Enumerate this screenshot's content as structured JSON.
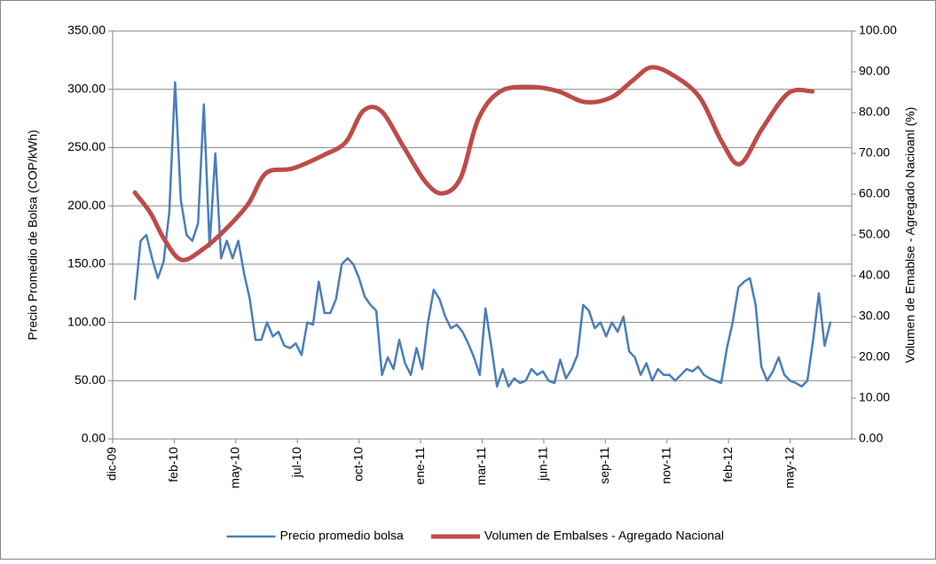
{
  "chart_data": {
    "type": "line",
    "ylabel": "Precio Promedio de Bolsa (COP/kWh)",
    "y2label": "Volumen de Emablse - Agregado Nacioanl (%)",
    "xlim": [
      0,
      900
    ],
    "xticks": [
      {
        "value": 0,
        "label": "dic-09"
      },
      {
        "value": 75,
        "label": "feb-10"
      },
      {
        "value": 150,
        "label": "may-10"
      },
      {
        "value": 225,
        "label": "jul-10"
      },
      {
        "value": 300,
        "label": "oct-10"
      },
      {
        "value": 375,
        "label": "ene-11"
      },
      {
        "value": 450,
        "label": "mar-11"
      },
      {
        "value": 525,
        "label": "jun-11"
      },
      {
        "value": 600,
        "label": "sep-11"
      },
      {
        "value": 675,
        "label": "nov-11"
      },
      {
        "value": 750,
        "label": "feb-12"
      },
      {
        "value": 825,
        "label": "may-12"
      }
    ],
    "ylim": [
      0,
      350
    ],
    "yticks": [
      {
        "value": 0,
        "label": "0.00"
      },
      {
        "value": 50,
        "label": "50.00"
      },
      {
        "value": 100,
        "label": "100.00"
      },
      {
        "value": 150,
        "label": "150.00"
      },
      {
        "value": 200,
        "label": "200.00"
      },
      {
        "value": 250,
        "label": "250.00"
      },
      {
        "value": 300,
        "label": "300.00"
      },
      {
        "value": 350,
        "label": "350.00"
      }
    ],
    "y2lim": [
      0,
      100
    ],
    "y2ticks": [
      {
        "value": 0,
        "label": "0.00"
      },
      {
        "value": 10,
        "label": "10.00"
      },
      {
        "value": 20,
        "label": "20.00"
      },
      {
        "value": 30,
        "label": "30.00"
      },
      {
        "value": 40,
        "label": "40.00"
      },
      {
        "value": 50,
        "label": "50.00"
      },
      {
        "value": 60,
        "label": "60.00"
      },
      {
        "value": 70,
        "label": "70.00"
      },
      {
        "value": 80,
        "label": "80.00"
      },
      {
        "value": 90,
        "label": "90.00"
      },
      {
        "value": 100,
        "label": "100.00"
      }
    ],
    "grid": true,
    "legend": "bottom",
    "series": [
      {
        "name": "Precio promedio bolsa",
        "color": "#4a7ebb",
        "axis": "y",
        "x": [
          27,
          34,
          41,
          48,
          55,
          62,
          69,
          76,
          83,
          90,
          97,
          104,
          111,
          118,
          125,
          132,
          139,
          146,
          153,
          160,
          167,
          174,
          181,
          188,
          195,
          202,
          209,
          216,
          223,
          230,
          237,
          244,
          251,
          258,
          265,
          272,
          279,
          286,
          293,
          300,
          307,
          314,
          321,
          328,
          335,
          342,
          349,
          356,
          363,
          370,
          377,
          384,
          391,
          398,
          405,
          412,
          419,
          426,
          433,
          440,
          447,
          454,
          461,
          468,
          475,
          482,
          489,
          496,
          503,
          510,
          517,
          524,
          531,
          538,
          545,
          552,
          559,
          566,
          573,
          580,
          587,
          594,
          601,
          608,
          615,
          622,
          629,
          636,
          643,
          650,
          657,
          664,
          671,
          678,
          685,
          692,
          699,
          706,
          713,
          720,
          727,
          734,
          741,
          748,
          755,
          762,
          769,
          776,
          783,
          790,
          797,
          804,
          811,
          818,
          825,
          832,
          839,
          846,
          853,
          860,
          867,
          874
        ],
        "values": [
          120,
          170,
          175,
          155,
          138,
          152,
          195,
          306,
          205,
          175,
          170,
          185,
          287,
          165,
          245,
          155,
          170,
          155,
          170,
          142,
          120,
          85,
          85,
          100,
          88,
          92,
          80,
          78,
          82,
          72,
          100,
          98,
          135,
          108,
          108,
          120,
          150,
          155,
          150,
          138,
          122,
          115,
          110,
          55,
          70,
          60,
          85,
          65,
          55,
          78,
          60,
          100,
          128,
          120,
          105,
          95,
          98,
          92,
          82,
          70,
          55,
          112,
          80,
          45,
          60,
          45,
          52,
          48,
          50,
          60,
          55,
          58,
          50,
          48,
          68,
          52,
          60,
          72,
          115,
          110,
          95,
          100,
          88,
          100,
          92,
          105,
          75,
          70,
          55,
          65,
          50,
          60,
          55,
          55,
          50,
          55,
          60,
          58,
          62,
          55,
          52,
          50,
          48,
          78,
          100,
          130,
          135,
          138,
          115,
          62,
          50,
          58,
          70,
          55,
          50,
          48,
          45,
          50,
          85,
          125,
          80,
          100
        ]
      },
      {
        "name": "Volumen de Embalses - Agregado Nacional",
        "color": "#be4b48",
        "axis": "y2",
        "x": [
          27,
          46,
          63,
          84,
          111,
          138,
          165,
          187,
          219,
          257,
          284,
          305,
          327,
          354,
          381,
          402,
          424,
          445,
          472,
          510,
          543,
          575,
          607,
          634,
          656,
          683,
          715,
          742,
          764,
          791,
          823,
          852
        ],
        "values": [
          60.4,
          55.4,
          48.9,
          43.9,
          46.7,
          51.5,
          57.6,
          65.2,
          66.3,
          69.6,
          72.8,
          80.4,
          80.4,
          71.7,
          63.0,
          60.2,
          64.1,
          78.3,
          85.2,
          86.3,
          85.2,
          82.6,
          83.7,
          88.0,
          91.1,
          89.1,
          83.7,
          72.8,
          67.4,
          76.1,
          84.8,
          85.2
        ]
      }
    ]
  }
}
